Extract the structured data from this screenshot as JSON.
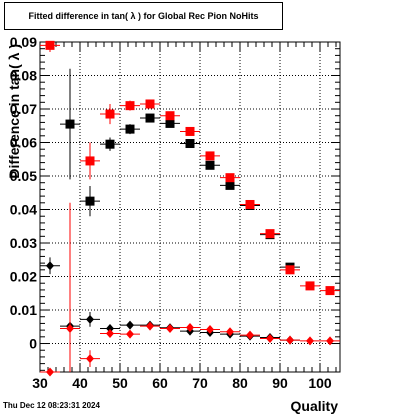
{
  "title": "Fitted difference in tan( λ ) for Global Rec Pion NoHits",
  "timestamp": "Thu Dec 12 08:23:31 2024",
  "chart_data": {
    "type": "scatter",
    "title": "Fitted difference in tan( λ ) for Global Rec Pion NoHits",
    "xlabel": "Quality",
    "ylabel": "Difference in tan( λ )",
    "xlim": [
      30,
      105
    ],
    "ylim": [
      -0.0085,
      0.09
    ],
    "grid": true,
    "x_ticks": [
      30,
      40,
      50,
      60,
      70,
      80,
      90,
      100
    ],
    "y_ticks": [
      0,
      0.01,
      0.02,
      0.03,
      0.04,
      0.05,
      0.06,
      0.07,
      0.08,
      0.09
    ],
    "y_tick_labels": [
      "0",
      "0.01",
      "0.02",
      "0.03",
      "0.04",
      "0.05",
      "0.06",
      "0.07",
      "0.08",
      "0.09"
    ],
    "series": [
      {
        "marker": "square",
        "color": "#000000",
        "points": [
          {
            "x": 37.5,
            "y": 0.0655,
            "yerr": 0.0165
          },
          {
            "x": 42.5,
            "y": 0.0425,
            "yerr": 0.0045
          },
          {
            "x": 47.5,
            "y": 0.0595,
            "yerr": 0.002
          },
          {
            "x": 52.5,
            "y": 0.064,
            "yerr": 0.0015
          },
          {
            "x": 57.5,
            "y": 0.0673,
            "yerr": 0.001
          },
          {
            "x": 62.5,
            "y": 0.0657,
            "yerr": 0.0008
          },
          {
            "x": 67.5,
            "y": 0.0597,
            "yerr": 0.0007
          },
          {
            "x": 72.5,
            "y": 0.0532,
            "yerr": 0.0006
          },
          {
            "x": 77.5,
            "y": 0.0472,
            "yerr": 0.0005
          },
          {
            "x": 82.5,
            "y": 0.0412,
            "yerr": 0.0005
          },
          {
            "x": 87.5,
            "y": 0.0325,
            "yerr": 0.0004
          },
          {
            "x": 92.5,
            "y": 0.0228,
            "yerr": 0.0003
          }
        ]
      },
      {
        "marker": "square",
        "color": "#ff0000",
        "points": [
          {
            "x": 32.5,
            "y": 0.089,
            "yerr": 0.002
          },
          {
            "x": 42.5,
            "y": 0.0545,
            "yerr": 0.0055
          },
          {
            "x": 47.5,
            "y": 0.0685,
            "yerr": 0.003
          },
          {
            "x": 52.5,
            "y": 0.071,
            "yerr": 0.0015
          },
          {
            "x": 57.5,
            "y": 0.0715,
            "yerr": 0.001
          },
          {
            "x": 62.5,
            "y": 0.068,
            "yerr": 0.0008
          },
          {
            "x": 67.5,
            "y": 0.0633,
            "yerr": 0.0007
          },
          {
            "x": 72.5,
            "y": 0.056,
            "yerr": 0.0006
          },
          {
            "x": 77.5,
            "y": 0.0495,
            "yerr": 0.0005
          },
          {
            "x": 82.5,
            "y": 0.0415,
            "yerr": 0.0005
          },
          {
            "x": 87.5,
            "y": 0.0328,
            "yerr": 0.0004
          },
          {
            "x": 92.5,
            "y": 0.022,
            "yerr": 0.0004
          },
          {
            "x": 97.5,
            "y": 0.0172,
            "yerr": 0.0003
          },
          {
            "x": 102.5,
            "y": 0.0158,
            "yerr": 0.0003
          }
        ]
      },
      {
        "marker": "diamond",
        "color": "#000000",
        "points": [
          {
            "x": 32.5,
            "y": 0.0232,
            "yerr": 0.0025
          },
          {
            "x": 37.5,
            "y": 0.0052,
            "yerr": 0.0012
          },
          {
            "x": 42.5,
            "y": 0.0072,
            "yerr": 0.0022
          },
          {
            "x": 47.5,
            "y": 0.0045,
            "yerr": 0.0012
          },
          {
            "x": 52.5,
            "y": 0.0055,
            "yerr": 0.0008
          },
          {
            "x": 57.5,
            "y": 0.0055,
            "yerr": 0.0005
          },
          {
            "x": 62.5,
            "y": 0.0047,
            "yerr": 0.0004
          },
          {
            "x": 67.5,
            "y": 0.0037,
            "yerr": 0.0003
          },
          {
            "x": 72.5,
            "y": 0.0033,
            "yerr": 0.0003
          },
          {
            "x": 77.5,
            "y": 0.0028,
            "yerr": 0.0002
          },
          {
            "x": 82.5,
            "y": 0.0022,
            "yerr": 0.0002
          },
          {
            "x": 87.5,
            "y": 0.0018,
            "yerr": 0.0002
          },
          {
            "x": 92.5,
            "y": 0.001,
            "yerr": 0.0002
          }
        ]
      },
      {
        "marker": "diamond",
        "color": "#ff0000",
        "points": [
          {
            "x": 32.5,
            "y": -0.0085,
            "yerr": 0.001
          },
          {
            "x": 37.5,
            "y": 0.0045,
            "yerr": 0.0375
          },
          {
            "x": 42.5,
            "y": -0.0045,
            "yerr": 0.0025
          },
          {
            "x": 47.5,
            "y": 0.003,
            "yerr": 0.0012
          },
          {
            "x": 52.5,
            "y": 0.0028,
            "yerr": 0.0007
          },
          {
            "x": 57.5,
            "y": 0.0052,
            "yerr": 0.0005
          },
          {
            "x": 62.5,
            "y": 0.0045,
            "yerr": 0.0004
          },
          {
            "x": 67.5,
            "y": 0.0048,
            "yerr": 0.0003
          },
          {
            "x": 72.5,
            "y": 0.0042,
            "yerr": 0.0003
          },
          {
            "x": 77.5,
            "y": 0.0035,
            "yerr": 0.0002
          },
          {
            "x": 82.5,
            "y": 0.0025,
            "yerr": 0.0002
          },
          {
            "x": 87.5,
            "y": 0.0015,
            "yerr": 0.0002
          },
          {
            "x": 92.5,
            "y": 0.001,
            "yerr": 0.0002
          },
          {
            "x": 97.5,
            "y": 0.0008,
            "yerr": 0.0002
          },
          {
            "x": 102.5,
            "y": 0.0008,
            "yerr": 0.0002
          }
        ]
      }
    ]
  }
}
